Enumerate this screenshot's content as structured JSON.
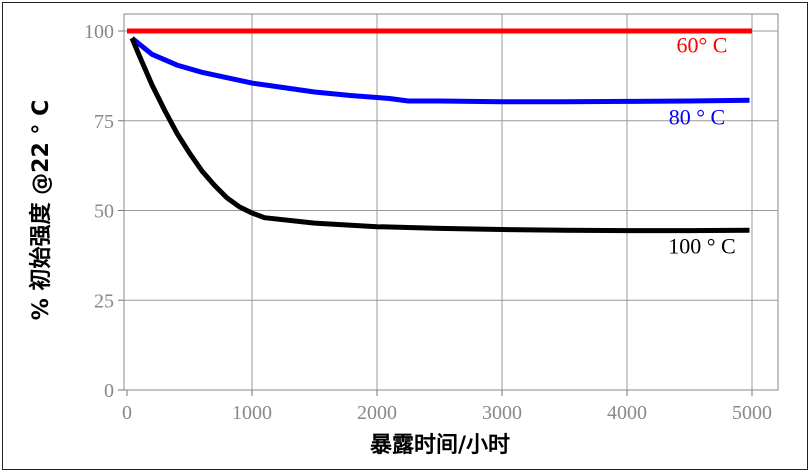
{
  "chart_data": {
    "type": "line",
    "xlabel": "暴露时间/小时",
    "ylabel": "% 初始强度 @22 ° C",
    "xlim": [
      0,
      5000
    ],
    "ylim": [
      0,
      100
    ],
    "xticks": [
      "0",
      "1000",
      "2000",
      "3000",
      "4000",
      "5000"
    ],
    "yticks": [
      "0",
      "25",
      "50",
      "75",
      "100"
    ],
    "grid": true,
    "legend": "inline-labels",
    "series": [
      {
        "name": "60° C",
        "color": "#ff0000",
        "x": [
          0,
          5000
        ],
        "y": [
          100,
          100
        ]
      },
      {
        "name": "80 ° C",
        "color": "#0000ff",
        "x": [
          40,
          200,
          400,
          600,
          800,
          1000,
          1200,
          1500,
          1800,
          2100,
          2250,
          2500,
          3000,
          3500,
          4000,
          4500,
          4980
        ],
        "y": [
          98,
          93.5,
          90.5,
          88.5,
          87,
          85.5,
          84.5,
          83,
          82,
          81.2,
          80.5,
          80.5,
          80.3,
          80.3,
          80.4,
          80.5,
          80.7
        ]
      },
      {
        "name": "100 ° C",
        "color": "#000000",
        "x": [
          40,
          100,
          200,
          300,
          400,
          500,
          600,
          700,
          800,
          900,
          1000,
          1100,
          1500,
          2000,
          2500,
          3000,
          3500,
          4000,
          4500,
          4980
        ],
        "y": [
          98,
          93,
          85,
          78,
          71.5,
          66,
          61,
          57,
          53.5,
          51,
          49.3,
          48,
          46.5,
          45.5,
          45,
          44.7,
          44.5,
          44.4,
          44.4,
          44.5
        ]
      }
    ]
  }
}
